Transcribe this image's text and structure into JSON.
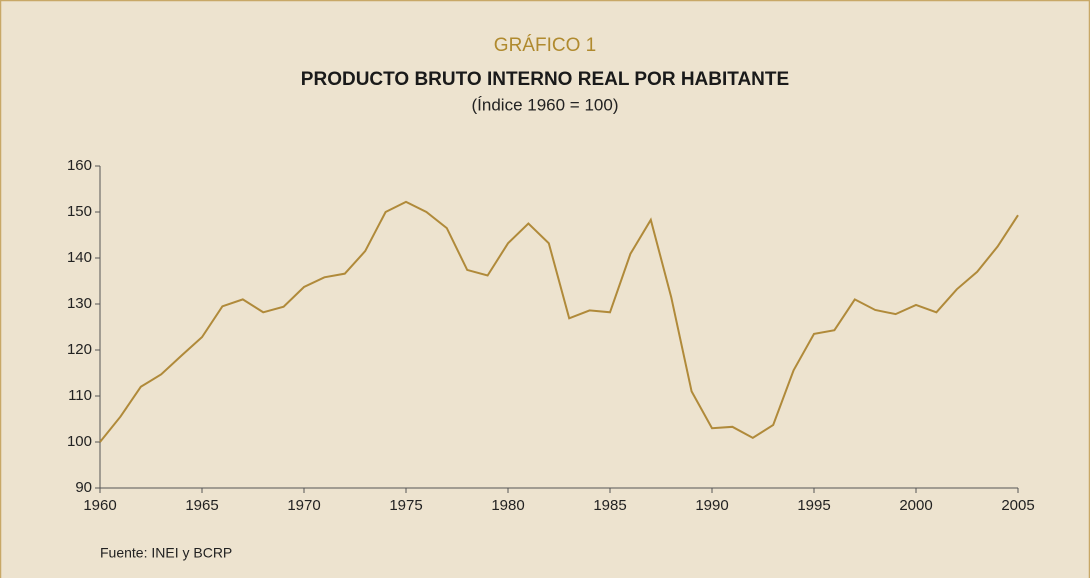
{
  "chart_data": {
    "type": "line",
    "label": "GRÁFICO 1",
    "title": "PRODUCTO BRUTO INTERNO REAL POR HABITANTE",
    "subtitle": "(Índice 1960 = 100)",
    "source": "Fuente: INEI y BCRP",
    "x": [
      1960,
      1961,
      1962,
      1963,
      1964,
      1965,
      1966,
      1967,
      1968,
      1969,
      1970,
      1971,
      1972,
      1973,
      1974,
      1975,
      1976,
      1977,
      1978,
      1979,
      1980,
      1981,
      1982,
      1983,
      1984,
      1985,
      1986,
      1987,
      1988,
      1989,
      1990,
      1991,
      1992,
      1993,
      1994,
      1995,
      1996,
      1997,
      1998,
      1999,
      2000,
      2001,
      2002,
      2003,
      2004,
      2005
    ],
    "values": [
      100,
      105.5,
      112,
      114.7,
      118.8,
      122.8,
      129.5,
      131,
      128.2,
      129.4,
      133.7,
      135.8,
      136.6,
      141.5,
      150,
      152.2,
      150,
      146.5,
      137.4,
      136.2,
      143.2,
      147.5,
      143.2,
      126.9,
      128.6,
      128.2,
      140.9,
      148.3,
      131.5,
      111,
      103,
      103.3,
      100.9,
      103.7,
      115.6,
      123.5,
      124.3,
      131,
      128.7,
      127.8,
      129.8,
      128.2,
      133.2,
      137,
      142.5,
      149.3
    ],
    "color": "#b08a3a",
    "xlim": [
      1960,
      2005
    ],
    "xticks": [
      1960,
      1965,
      1970,
      1975,
      1980,
      1985,
      1990,
      1995,
      2000,
      2005
    ],
    "ylim": [
      90,
      160
    ],
    "yticks": [
      90,
      100,
      110,
      120,
      130,
      140,
      150,
      160
    ]
  }
}
